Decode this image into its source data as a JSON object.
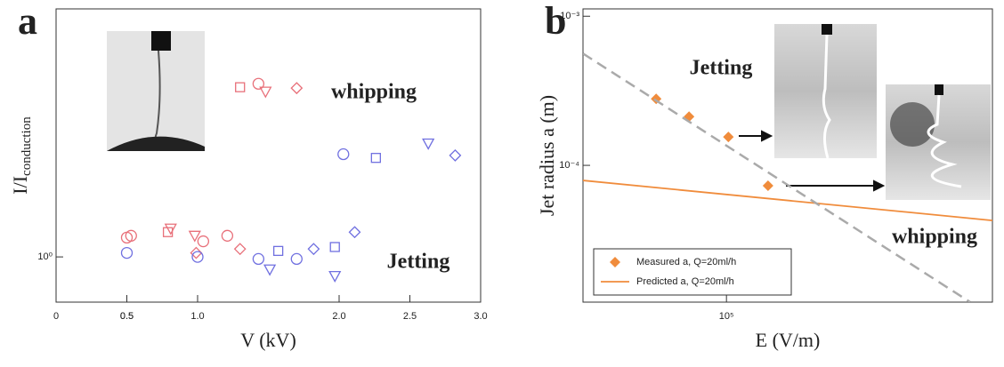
{
  "chart_data": [
    {
      "type": "scatter",
      "label": "a",
      "x_label": "V (kV)",
      "y_label": "I/I",
      "y_label_sub": "conduction",
      "xlim": [
        0,
        3.0
      ],
      "ylim": [
        0.8,
        3.4
      ],
      "ylog": true,
      "xticks": [
        0,
        0.5,
        {
          "value": 1,
          "label": "1.0"
        },
        0.5,
        {
          "value": 2,
          "label": "2.0"
        },
        2.5,
        {
          "value": 3,
          "label": "3.0"
        }
      ],
      "yticks": [
        {
          "value": 1,
          "label": "10⁰"
        }
      ],
      "annotations": [
        "whipping",
        "Jetting"
      ],
      "series": [
        {
          "color": "#e8707a",
          "marker": "circle",
          "x": [
            0.5,
            0.53,
            1.43,
            1.04,
            1.21
          ],
          "values": [
            1.1,
            1.11,
            2.35,
            1.08,
            1.11
          ]
        },
        {
          "color": "#e8707a",
          "marker": "square",
          "x": [
            1.3,
            0.79
          ],
          "values": [
            2.31,
            1.13
          ]
        },
        {
          "color": "#e8707a",
          "marker": "triangle",
          "x": [
            1.48,
            0.81,
            0.98
          ],
          "values": [
            2.26,
            1.15,
            1.11
          ]
        },
        {
          "color": "#e8707a",
          "marker": "diamond",
          "x": [
            1.7,
            0.99,
            1.3
          ],
          "values": [
            2.3,
            1.02,
            1.04
          ]
        },
        {
          "color": "#7070e0",
          "marker": "circle",
          "x": [
            0.5,
            1.0,
            1.43,
            1.7,
            2.03
          ],
          "values": [
            1.02,
            1.0,
            0.99,
            0.99,
            1.66
          ]
        },
        {
          "color": "#7070e0",
          "marker": "square",
          "x": [
            1.57,
            1.97,
            2.26
          ],
          "values": [
            1.03,
            1.05,
            1.63
          ]
        },
        {
          "color": "#7070e0",
          "marker": "triangle",
          "x": [
            1.51,
            1.97,
            2.63
          ],
          "values": [
            0.94,
            0.91,
            1.75
          ]
        },
        {
          "color": "#7070e0",
          "marker": "diamond",
          "x": [
            1.82,
            2.11,
            2.82
          ],
          "values": [
            1.04,
            1.13,
            1.65
          ]
        }
      ]
    },
    {
      "type": "scatter",
      "label": "b",
      "x_label": "E (V/m)",
      "y_label": "Jet radius a (m)",
      "xlim": [
        47600,
        396000
      ],
      "ylim": [
        1.21e-05,
        0.00112
      ],
      "xlog": true,
      "ylog": true,
      "xticks": [
        {
          "value": 100000,
          "label": "10⁵"
        }
      ],
      "yticks": [
        {
          "value": 0.001,
          "label": "10⁻³"
        },
        {
          "value": 0.0001,
          "label": "10⁻⁴"
        }
      ],
      "annotations": [
        "Jetting",
        "whipping"
      ],
      "legend": "lower left",
      "series": [
        {
          "name": "Measured a, Q=20ml/h",
          "color": "#f08c3c",
          "marker": "diamond",
          "x": [
            69500,
            82400,
            101000,
            124000
          ],
          "values": [
            0.000279,
            0.000212,
            0.000155,
            7.3e-05
          ]
        },
        {
          "name": "Predicted a, Q=20ml/h",
          "color": "#f08c3c",
          "style": "line",
          "x": [
            47600,
            396000
          ],
          "values": [
            7.92e-05,
            4.27e-05
          ]
        },
        {
          "color": "#aaaaaa",
          "style": "dashed",
          "x": [
            47600,
            353000
          ],
          "values": [
            0.000562,
            1.21e-05
          ]
        }
      ]
    }
  ]
}
